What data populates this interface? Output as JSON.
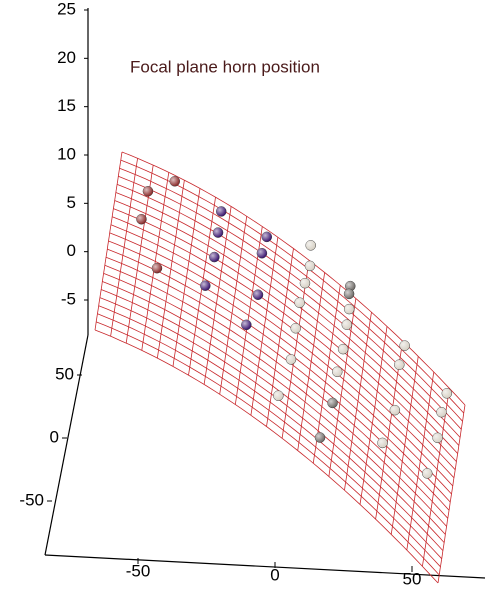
{
  "chart_data": {
    "type": "surface-scatter",
    "title": "Focal plane horn position",
    "xlim": [
      -80,
      80
    ],
    "ylim": [
      -80,
      80
    ],
    "zlim": [
      -5,
      25
    ],
    "xticks": [
      -50,
      0,
      50
    ],
    "yticks": [
      50,
      0,
      -50
    ],
    "zticks": [
      25,
      20,
      15,
      10,
      5,
      0,
      -5
    ],
    "mesh_color": "#c8282c",
    "series": [
      {
        "color": "#8b2a2a",
        "x": [
          -66,
          -55,
          -67,
          -57
        ],
        "y": [
          56,
          75,
          30,
          -5
        ]
      },
      {
        "color": "#3b1670",
        "x": [
          -33,
          -33,
          -12,
          -33,
          -13,
          -35,
          -12,
          -15
        ],
        "y": [
          71,
          52,
          74,
          30,
          58,
          2,
          22,
          -9
        ]
      },
      {
        "color": "#d6d0c4",
        "x": [
          7,
          8,
          7,
          6,
          27,
          6,
          27,
          6,
          27,
          26,
          3,
          52,
          51,
          72,
          52,
          71,
          71,
          49,
          69
        ],
        "y": [
          93,
          76,
          59,
          40,
          67,
          17,
          53,
          -11,
          31,
          9,
          -48,
          78,
          59,
          74,
          20,
          55,
          32,
          -15,
          -4
        ]
      },
      {
        "color": "#6e6a66",
        "x": [
          26,
          26,
          26,
          23
        ],
        "y": [
          86,
          79,
          -19,
          -55
        ]
      }
    ]
  }
}
